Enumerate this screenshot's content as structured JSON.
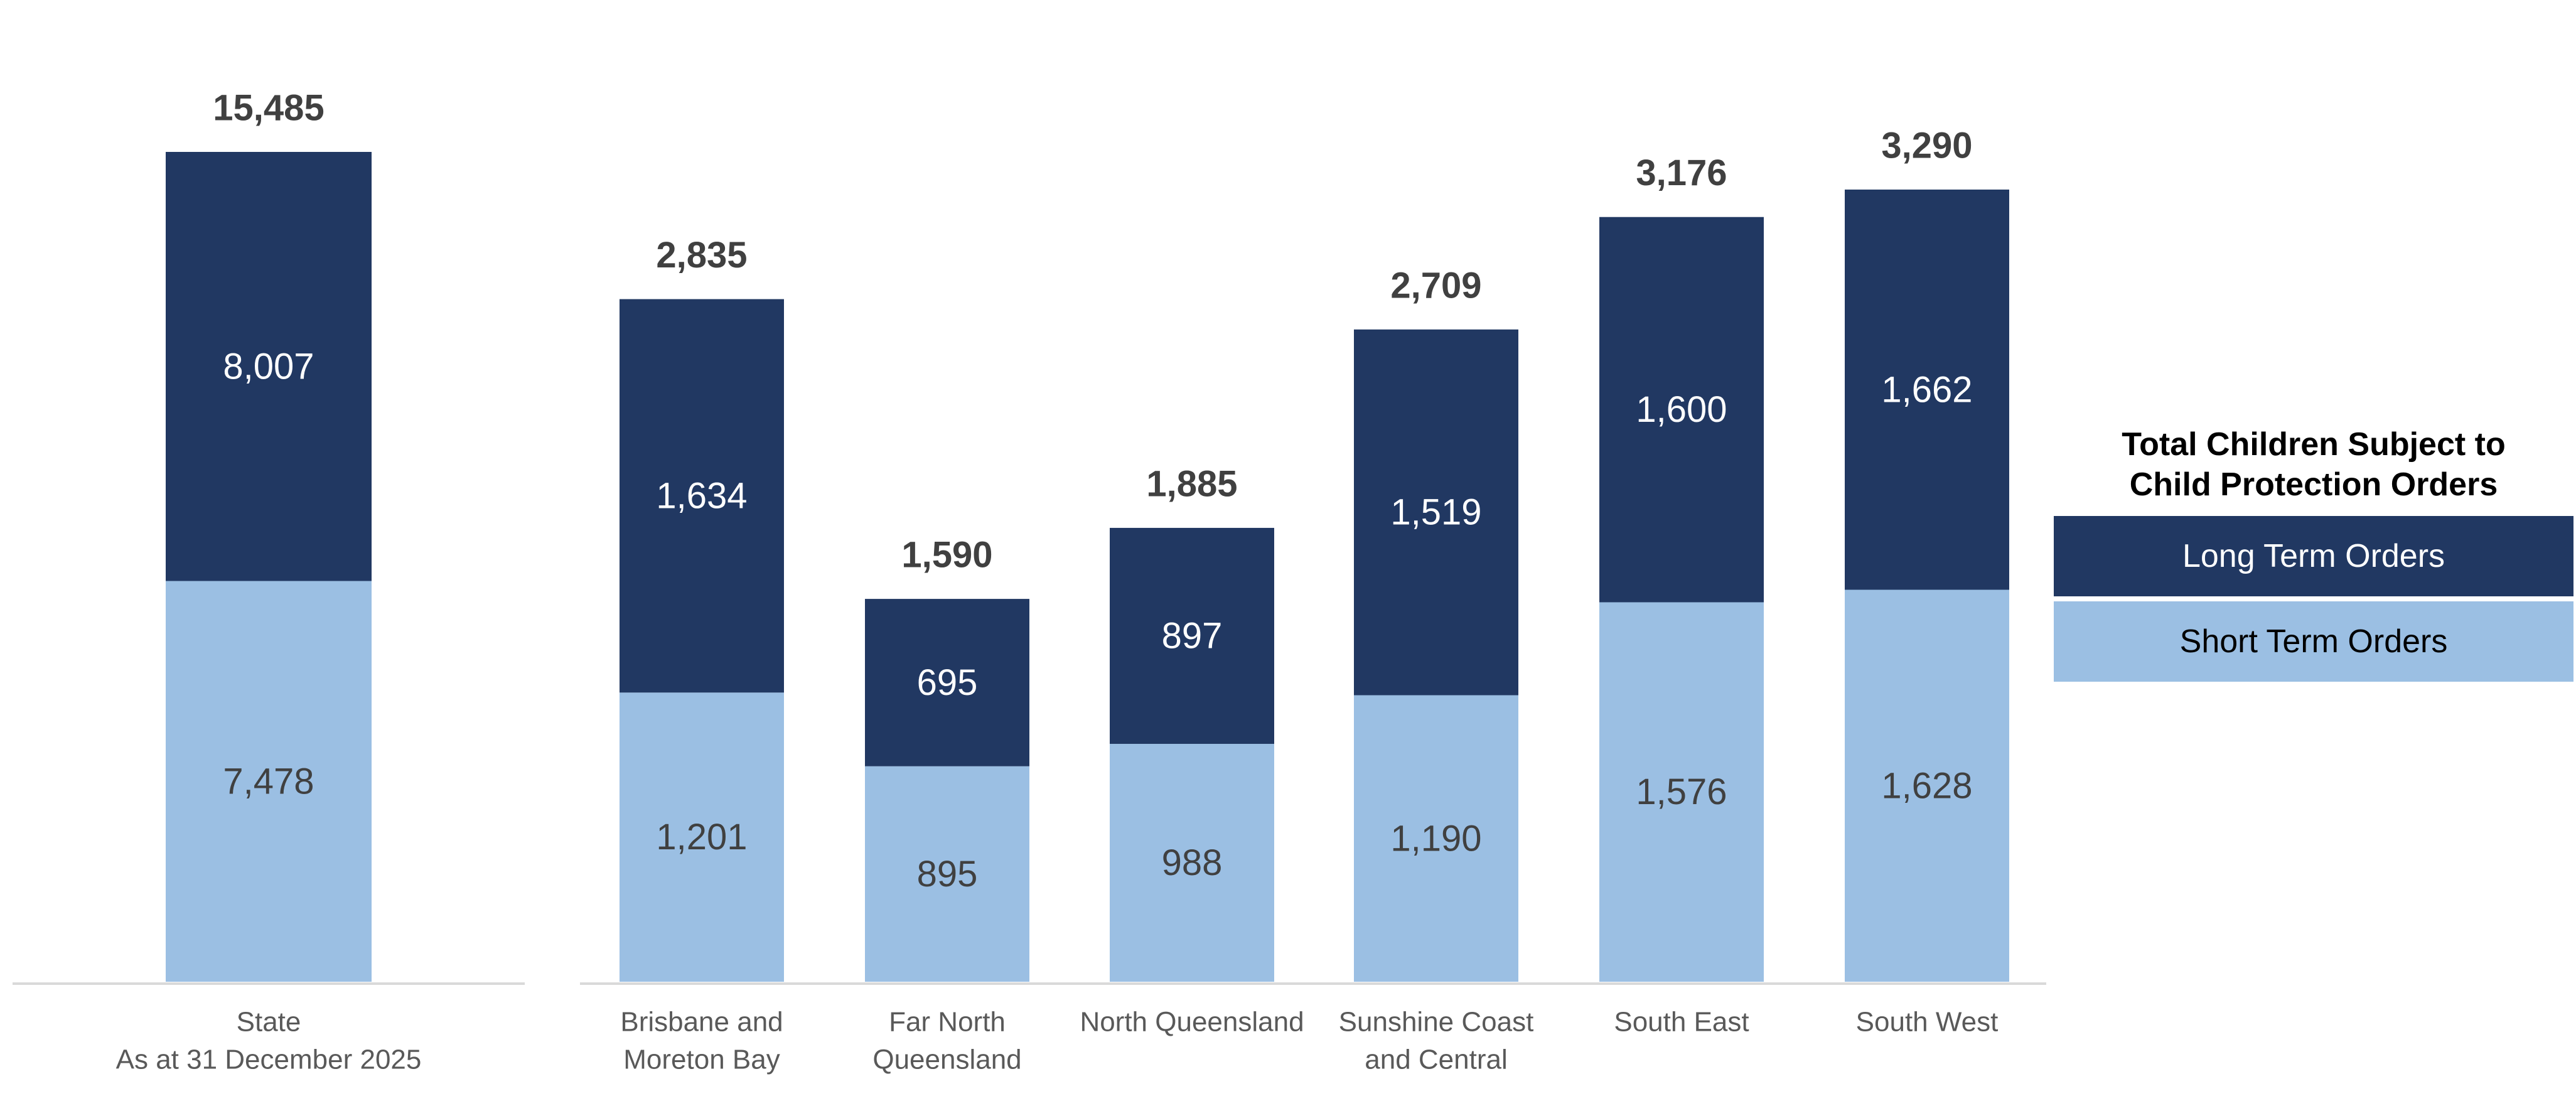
{
  "chart_data": {
    "type": "bar",
    "stacked": true,
    "categories": [
      [
        "State",
        "As at 31 December 2025"
      ],
      [
        "Brisbane and",
        "Moreton Bay"
      ],
      [
        "Far North",
        "Queensland"
      ],
      [
        "North Queensland"
      ],
      [
        "Sunshine Coast",
        "and Central"
      ],
      [
        "South East"
      ],
      [
        "South West"
      ]
    ],
    "series": [
      {
        "name": "Short Term Orders",
        "values": [
          7478,
          1201,
          895,
          988,
          1190,
          1576,
          1628
        ]
      },
      {
        "name": "Long Term Orders",
        "values": [
          8007,
          1634,
          695,
          897,
          1519,
          1600,
          1662
        ]
      }
    ],
    "totals": [
      15485,
      2835,
      1590,
      1885,
      2709,
      3176,
      3290
    ],
    "value_labels": {
      "short": [
        "7,478",
        "1,201",
        "895",
        "988",
        "1,190",
        "1,576",
        "1,628"
      ],
      "long": [
        "8,007",
        "1,634",
        "695",
        "897",
        "1,519",
        "1,600",
        "1,662"
      ],
      "totals": [
        "15,485",
        "2,835",
        "1,590",
        "1,885",
        "2,709",
        "3,176",
        "3,290"
      ]
    },
    "legend_title": "Total Children Subject to Child Protection Orders",
    "legend_position": "right",
    "colors": {
      "long": "#213862",
      "short": "#9bbfe3",
      "total_label": "#404040"
    },
    "axis_scales": {
      "state_max": 15485,
      "regional_max": 3290
    },
    "grid": false
  },
  "legend": {
    "title_line1": "Total Children Subject to",
    "title_line2": "Child Protection Orders",
    "long_label": "Long Term Orders",
    "short_label": "Short Term Orders"
  }
}
